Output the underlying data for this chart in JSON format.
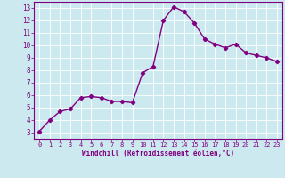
{
  "x": [
    0,
    1,
    2,
    3,
    4,
    5,
    6,
    7,
    8,
    9,
    10,
    11,
    12,
    13,
    14,
    15,
    16,
    17,
    18,
    19,
    20,
    21,
    22,
    23
  ],
  "y": [
    3.1,
    4.0,
    4.7,
    4.9,
    5.8,
    5.9,
    5.8,
    5.5,
    5.5,
    5.4,
    7.8,
    8.3,
    12.0,
    13.1,
    12.7,
    11.8,
    10.5,
    10.1,
    9.8,
    10.1,
    9.4,
    9.2,
    9.0,
    8.7
  ],
  "line_color": "#800080",
  "marker": "D",
  "marker_size": 2.2,
  "linewidth": 1.0,
  "bg_color": "#cce9f0",
  "grid_color": "#ffffff",
  "xlabel": "Windchill (Refroidissement éolien,°C)",
  "xlabel_color": "#800080",
  "tick_color": "#800080",
  "spine_color": "#800080",
  "ylim": [
    2.5,
    13.5
  ],
  "xlim": [
    -0.5,
    23.5
  ],
  "yticks": [
    3,
    4,
    5,
    6,
    7,
    8,
    9,
    10,
    11,
    12,
    13
  ],
  "xticks": [
    0,
    1,
    2,
    3,
    4,
    5,
    6,
    7,
    8,
    9,
    10,
    11,
    12,
    13,
    14,
    15,
    16,
    17,
    18,
    19,
    20,
    21,
    22,
    23
  ]
}
